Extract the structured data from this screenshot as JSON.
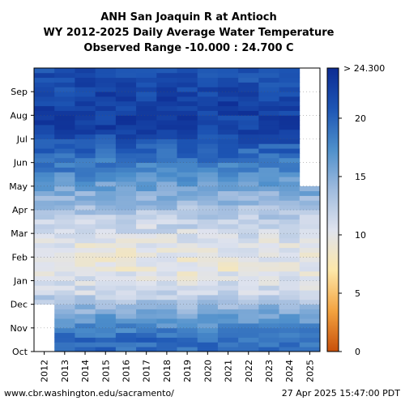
{
  "chart_data": {
    "type": "heatmap",
    "title_lines": [
      "ANH San Joaquin R at Antioch",
      "WY 2012-2025 Daily Average Water Temperature",
      "Observed Range -10.000 : 24.700 C"
    ],
    "x_categories": [
      "2012",
      "2013",
      "2014",
      "2015",
      "2016",
      "2017",
      "2018",
      "2019",
      "2020",
      "2021",
      "2022",
      "2023",
      "2024",
      "2025"
    ],
    "y_months": [
      "Oct",
      "Nov",
      "Dec",
      "Jan",
      "Feb",
      "Mar",
      "Apr",
      "May",
      "Jun",
      "Jul",
      "Aug",
      "Sep"
    ],
    "colorbar": {
      "min": 0,
      "max": 24.3,
      "ticks": [
        0,
        5,
        10,
        15,
        20
      ],
      "tick_labels": [
        "0",
        "5",
        "10",
        "15",
        "20"
      ],
      "top_label": "> 24.300",
      "colors": [
        "#c8500a",
        "#f3a340",
        "#fde7a8",
        "#dfe3ee",
        "#9fbbde",
        "#4d8fcb",
        "#1d55b4",
        "#0d2c93"
      ]
    },
    "monthly_mean_C": {
      "Oct": 19.5,
      "Nov": 16.0,
      "Dec": 11.5,
      "Jan": 9.5,
      "Feb": 10.0,
      "Mar": 12.0,
      "Apr": 14.5,
      "May": 17.5,
      "Jun": 20.0,
      "Jul": 22.5,
      "Aug": 22.5,
      "Sep": 21.5
    },
    "data_extent": {
      "2012": {
        "start": "Dec",
        "end": "Sep"
      },
      "2025": {
        "start": "Oct",
        "end": "Apr"
      }
    },
    "footer_left": "www.cbr.washington.edu/sacramento/",
    "footer_right": "27 Apr 2025 15:47:00 PDT"
  }
}
